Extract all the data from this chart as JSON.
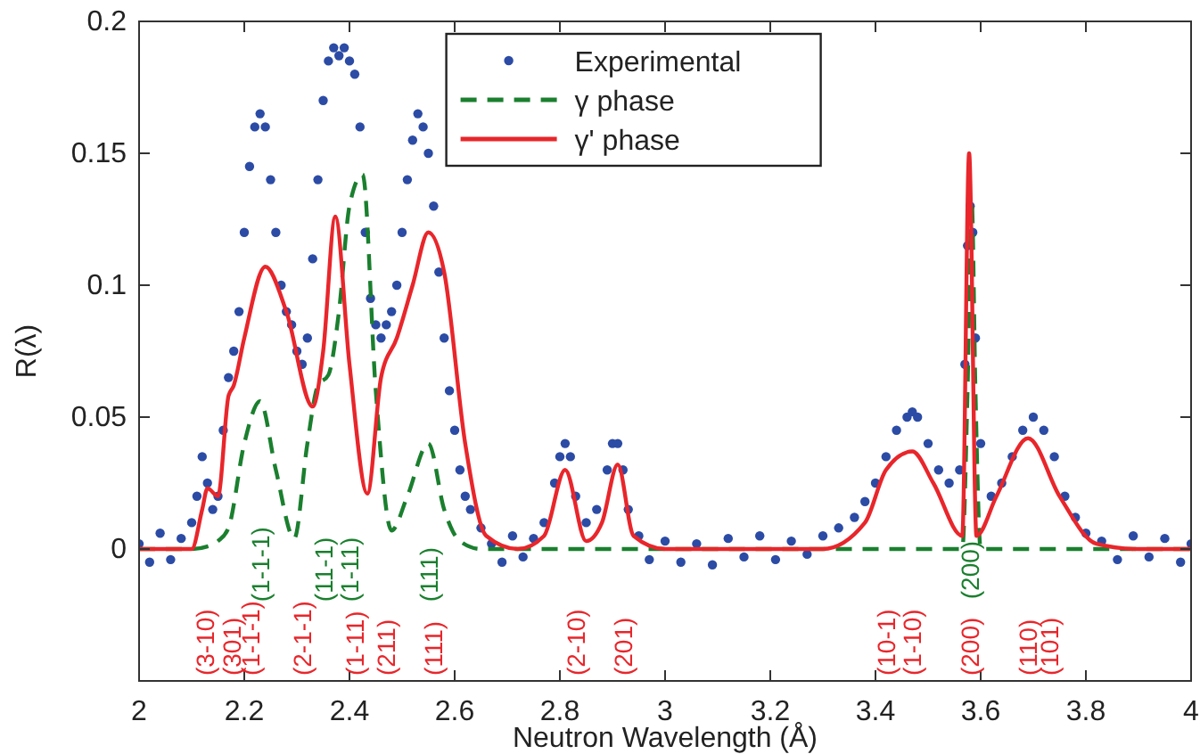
{
  "chart_data": {
    "type": "scatter",
    "xlabel": "Neutron Wavelength (Å)",
    "ylabel": "R(λ)",
    "xlim": [
      2,
      4
    ],
    "xticks": [
      2,
      2.2,
      2.4,
      2.6,
      2.8,
      3,
      3.2,
      3.4,
      3.6,
      3.8,
      4
    ],
    "ylim": [
      -0.05,
      0.2
    ],
    "yticks": [
      0,
      0.05,
      0.1,
      0.15,
      0.2
    ],
    "grid": false,
    "legend": "top",
    "marker": "circle",
    "series": [
      {
        "name": "Experimental",
        "color": "#2b4ba5",
        "x": [
          2.0,
          2.02,
          2.04,
          2.06,
          2.08,
          2.1,
          2.11,
          2.12,
          2.13,
          2.14,
          2.15,
          2.16,
          2.17,
          2.18,
          2.19,
          2.2,
          2.21,
          2.22,
          2.23,
          2.24,
          2.25,
          2.26,
          2.27,
          2.28,
          2.29,
          2.3,
          2.31,
          2.32,
          2.33,
          2.34,
          2.35,
          2.36,
          2.37,
          2.38,
          2.39,
          2.4,
          2.41,
          2.42,
          2.43,
          2.44,
          2.45,
          2.46,
          2.47,
          2.48,
          2.49,
          2.5,
          2.51,
          2.52,
          2.53,
          2.54,
          2.55,
          2.56,
          2.57,
          2.58,
          2.59,
          2.6,
          2.61,
          2.62,
          2.63,
          2.65,
          2.67,
          2.69,
          2.71,
          2.73,
          2.75,
          2.77,
          2.79,
          2.8,
          2.81,
          2.82,
          2.83,
          2.85,
          2.87,
          2.89,
          2.9,
          2.91,
          2.92,
          2.93,
          2.95,
          2.97,
          3.0,
          3.03,
          3.06,
          3.09,
          3.12,
          3.15,
          3.18,
          3.21,
          3.24,
          3.27,
          3.3,
          3.33,
          3.36,
          3.38,
          3.4,
          3.42,
          3.44,
          3.46,
          3.47,
          3.48,
          3.5,
          3.52,
          3.54,
          3.56,
          3.57,
          3.575,
          3.58,
          3.585,
          3.59,
          3.6,
          3.62,
          3.64,
          3.66,
          3.68,
          3.7,
          3.72,
          3.74,
          3.76,
          3.78,
          3.8,
          3.83,
          3.86,
          3.89,
          3.92,
          3.95,
          3.98,
          4.0
        ],
        "values": [
          0.002,
          -0.005,
          0.006,
          -0.004,
          0.004,
          0.01,
          0.02,
          0.035,
          0.025,
          0.015,
          0.02,
          0.045,
          0.065,
          0.075,
          0.09,
          0.12,
          0.145,
          0.16,
          0.165,
          0.16,
          0.14,
          0.12,
          0.1,
          0.09,
          0.085,
          0.075,
          0.07,
          0.08,
          0.11,
          0.14,
          0.17,
          0.185,
          0.19,
          0.187,
          0.19,
          0.185,
          0.18,
          0.16,
          0.12,
          0.095,
          0.085,
          0.08,
          0.085,
          0.09,
          0.1,
          0.12,
          0.14,
          0.155,
          0.165,
          0.16,
          0.15,
          0.13,
          0.105,
          0.08,
          0.06,
          0.045,
          0.03,
          0.02,
          0.015,
          0.008,
          0.002,
          -0.005,
          0.005,
          -0.003,
          0.004,
          0.01,
          0.025,
          0.035,
          0.04,
          0.035,
          0.02,
          0.01,
          0.015,
          0.03,
          0.04,
          0.04,
          0.03,
          0.015,
          0.005,
          -0.004,
          0.003,
          -0.005,
          0.002,
          -0.006,
          0.004,
          -0.003,
          0.005,
          -0.004,
          0.003,
          -0.002,
          0.005,
          0.008,
          0.012,
          0.018,
          0.025,
          0.035,
          0.045,
          0.05,
          0.052,
          0.05,
          0.04,
          0.03,
          0.025,
          0.03,
          0.07,
          0.115,
          0.13,
          0.12,
          0.08,
          0.04,
          0.02,
          0.025,
          0.035,
          0.045,
          0.05,
          0.045,
          0.035,
          0.02,
          0.012,
          0.006,
          0.003,
          -0.004,
          0.005,
          -0.003,
          0.004,
          -0.005,
          0.002
        ]
      },
      {
        "name": "γ phase",
        "type": "line",
        "line_style": "dashed",
        "marker": "none",
        "color": "#1a7f2e",
        "x": [
          2.0,
          2.1,
          2.13,
          2.15,
          2.17,
          2.2,
          2.23,
          2.26,
          2.295,
          2.32,
          2.34,
          2.36,
          2.38,
          2.4,
          2.425,
          2.45,
          2.48,
          2.51,
          2.55,
          2.58,
          2.61,
          2.65,
          3.5,
          3.565,
          3.575,
          3.583,
          3.59,
          3.6,
          4.0
        ],
        "values": [
          0,
          0,
          0.001,
          0.003,
          0.008,
          0.04,
          0.056,
          0.03,
          0.004,
          0.04,
          0.062,
          0.066,
          0.09,
          0.13,
          0.142,
          0.06,
          0.007,
          0.02,
          0.04,
          0.015,
          0.003,
          0,
          0,
          0,
          0.06,
          0.132,
          0.06,
          0,
          0
        ]
      },
      {
        "name": "γ' phase",
        "type": "line",
        "line_style": "solid",
        "marker": "none",
        "color": "#e8262b",
        "x": [
          2.0,
          2.1,
          2.12,
          2.13,
          2.15,
          2.17,
          2.18,
          2.2,
          2.24,
          2.28,
          2.33,
          2.35,
          2.373,
          2.4,
          2.434,
          2.46,
          2.49,
          2.52,
          2.55,
          2.58,
          2.62,
          2.66,
          2.72,
          2.77,
          2.81,
          2.85,
          2.88,
          2.91,
          2.94,
          3.0,
          3.3,
          3.38,
          3.42,
          3.47,
          3.51,
          3.565,
          3.578,
          3.592,
          3.63,
          3.69,
          3.75,
          3.82,
          3.9,
          4.0
        ],
        "values": [
          0,
          0,
          0.015,
          0.023,
          0.02,
          0.058,
          0.062,
          0.08,
          0.107,
          0.09,
          0.054,
          0.075,
          0.126,
          0.07,
          0.021,
          0.065,
          0.08,
          0.1,
          0.12,
          0.105,
          0.04,
          0.005,
          0,
          0.005,
          0.03,
          0.003,
          0.01,
          0.032,
          0.005,
          0,
          0,
          0.01,
          0.03,
          0.037,
          0.025,
          0.005,
          0.15,
          0.005,
          0.02,
          0.042,
          0.02,
          0.002,
          0,
          0
        ]
      }
    ],
    "annotations": [
      "(3-10)",
      "(301)",
      "(1-1-1)",
      "(1-1-1)",
      "(2-1-1)",
      "(11-1)",
      "(1-11)",
      "(1-11)",
      "(211)",
      "(111)",
      "(111)",
      "(2-10)",
      "(201)",
      "(10-1)",
      "(1-10)",
      "(200)",
      "(200)",
      "(110)",
      "(101)"
    ]
  }
}
